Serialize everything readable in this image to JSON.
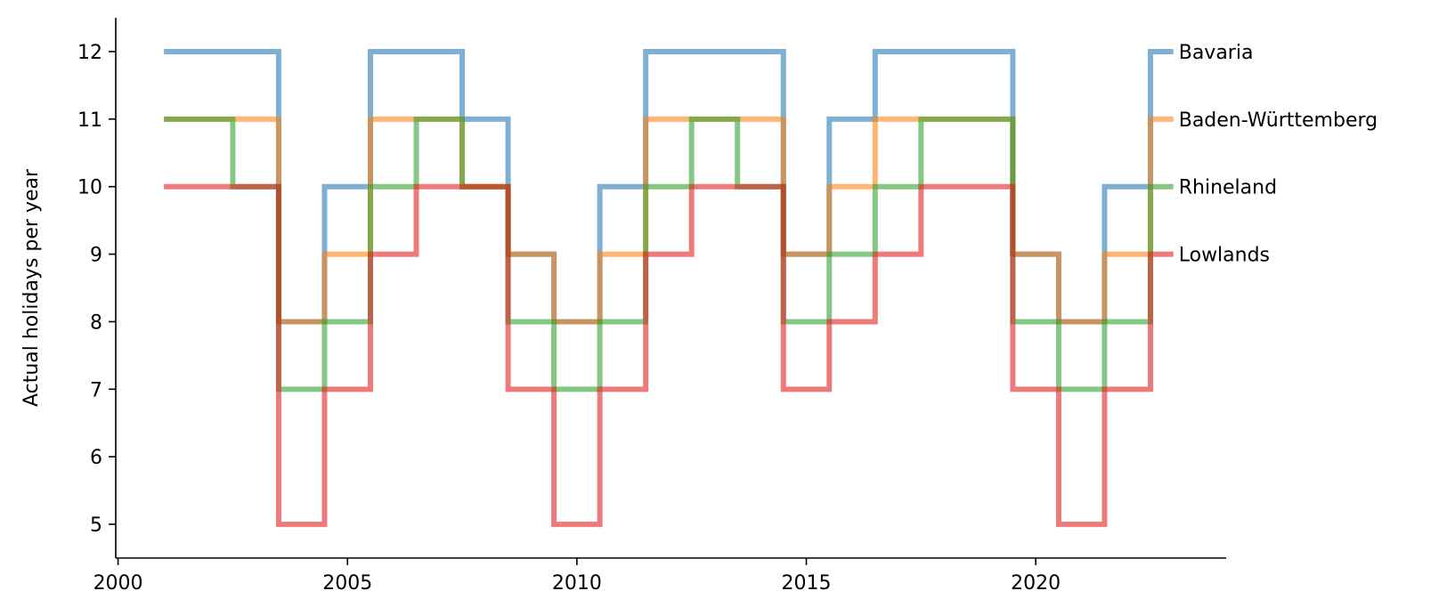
{
  "chart_data": {
    "type": "line",
    "step": "post",
    "title": "",
    "xlabel": "",
    "ylabel": "Actual holidays per year",
    "xlim": [
      1999.95,
      2024.15
    ],
    "ylim": [
      4.5,
      12.5
    ],
    "xticks": [
      2000,
      2005,
      2010,
      2015,
      2020
    ],
    "yticks": [
      5,
      6,
      7,
      8,
      9,
      10,
      11,
      12
    ],
    "grid": false,
    "legend": "labels at right end of lines",
    "x": [
      2001,
      2002,
      2003,
      2004,
      2005,
      2006,
      2007,
      2008,
      2009,
      2010,
      2011,
      2012,
      2013,
      2014,
      2015,
      2016,
      2017,
      2018,
      2019,
      2020,
      2021,
      2022,
      2023
    ],
    "series": [
      {
        "name": "Bavaria",
        "color": "#1f77b4",
        "values": [
          12,
          12,
          12,
          8,
          10,
          12,
          12,
          11,
          9,
          8,
          10,
          12,
          12,
          12,
          9,
          11,
          12,
          12,
          12,
          9,
          8,
          10,
          12
        ]
      },
      {
        "name": "Baden-Württemberg",
        "color": "#ff7f0e",
        "values": [
          11,
          11,
          11,
          8,
          9,
          11,
          11,
          10,
          9,
          8,
          9,
          11,
          11,
          11,
          9,
          10,
          11,
          11,
          11,
          9,
          8,
          9,
          11
        ]
      },
      {
        "name": "Rhineland",
        "color": "#2ca02c",
        "values": [
          11,
          11,
          10,
          7,
          8,
          10,
          11,
          10,
          8,
          7,
          8,
          10,
          11,
          10,
          8,
          9,
          10,
          11,
          11,
          8,
          7,
          8,
          10
        ]
      },
      {
        "name": "Lowlands",
        "color": "#e31a1c",
        "values": [
          10,
          10,
          10,
          5,
          7,
          9,
          10,
          10,
          7,
          5,
          7,
          9,
          10,
          10,
          7,
          8,
          9,
          10,
          10,
          7,
          5,
          7,
          9
        ]
      }
    ]
  }
}
